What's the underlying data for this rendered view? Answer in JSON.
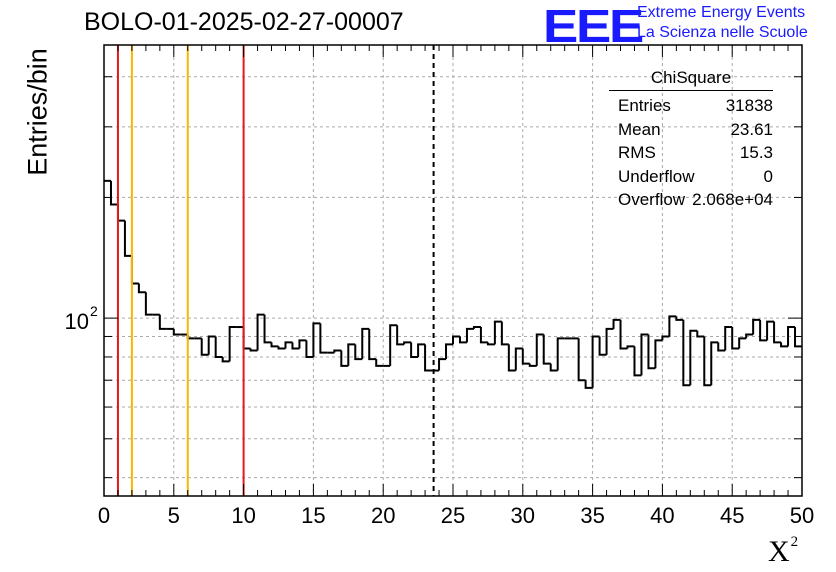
{
  "header": {
    "title": "BOLO-01-2025-02-27-00007",
    "logo_text": "EEE",
    "org_line1": "Extreme Energy Events",
    "org_line2": "La Scienza nelle Scuole"
  },
  "stats_box": {
    "name": "ChiSquare",
    "rows": [
      {
        "label": "Entries",
        "value": "31838"
      },
      {
        "label": "Mean",
        "value": "23.61"
      },
      {
        "label": "RMS",
        "value": "15.3"
      },
      {
        "label": "Underflow",
        "value": "0"
      },
      {
        "label": "Overflow",
        "value": "2.068e+04"
      }
    ]
  },
  "colors": {
    "red": "#e31a1c",
    "orange": "#f5b800",
    "grid": "#aaaaaa",
    "logo_blue": "#1a1aff"
  },
  "chart_data": {
    "type": "histogram",
    "title": "BOLO-01-2025-02-27-00007",
    "xlabel": "X",
    "xlabel_superscript": "2",
    "ylabel": "Entries/bin",
    "xlim": [
      0,
      50
    ],
    "ylim": [
      36,
      480
    ],
    "yscale": "log",
    "grid": true,
    "x_ticks": [
      0,
      5,
      10,
      15,
      20,
      25,
      30,
      35,
      40,
      45,
      50
    ],
    "x_tick_labels": [
      "0",
      "5",
      "10",
      "15",
      "20",
      "25",
      "30",
      "35",
      "40",
      "45",
      "50"
    ],
    "y_tick_label": {
      "base": "10",
      "exponent": "2",
      "value": 100
    },
    "bin_width": 0.5,
    "counts": [
      220,
      192,
      175,
      143,
      122,
      116,
      102,
      102,
      94,
      94,
      91,
      91,
      89,
      89,
      81,
      90,
      80,
      78,
      95,
      95,
      84,
      83,
      102,
      87,
      85,
      84,
      87,
      84,
      88,
      80,
      97,
      82,
      82,
      83,
      76,
      86,
      79,
      94,
      79,
      76,
      76,
      96,
      86,
      87,
      80,
      86,
      74,
      74,
      79,
      86,
      90,
      87,
      94,
      95,
      87,
      86,
      98,
      86,
      74,
      84,
      77,
      76,
      91,
      77,
      74,
      89,
      89,
      89,
      70,
      67,
      90,
      81,
      94,
      99,
      84,
      85,
      72,
      91,
      75,
      88,
      90,
      101,
      99,
      68,
      93,
      90,
      68,
      87,
      83,
      95,
      84,
      89,
      91,
      99,
      88,
      98,
      87,
      85,
      95,
      85
    ],
    "vertical_lines": [
      {
        "x": 1,
        "color": "red",
        "style": "solid"
      },
      {
        "x": 2,
        "color": "orange",
        "style": "solid"
      },
      {
        "x": 6,
        "color": "orange",
        "style": "solid"
      },
      {
        "x": 10,
        "color": "red",
        "style": "solid"
      },
      {
        "x": 23.61,
        "color": "black",
        "style": "dashed"
      }
    ]
  }
}
